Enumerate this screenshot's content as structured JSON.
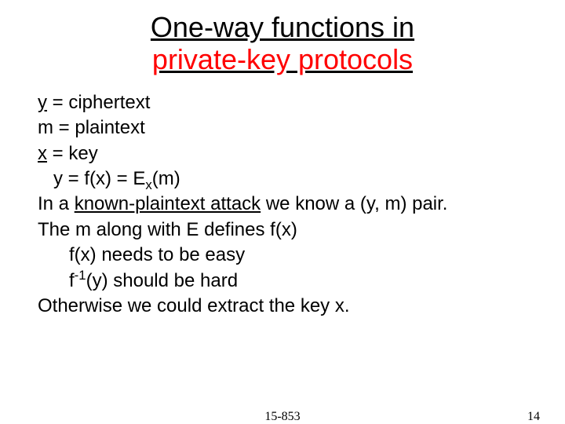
{
  "title": {
    "line1": "One-way functions in",
    "line2": "private-key protocols",
    "line2_color": "#ff0000",
    "fontsize": 36,
    "underline": true
  },
  "body": {
    "fontsize": 24,
    "lines": {
      "l1_var": "y",
      "l1_rest": " = ciphertext",
      "l2": "m = plaintext",
      "l3_var": "x",
      "l3_rest": " = key",
      "l4_pre": "y = f(x) = E",
      "l4_sub": "x",
      "l4_post": "(m)",
      "l5_pre": "In a ",
      "l5_u": "known-plaintext attack",
      "l5_post": " we know a (y, m) pair.",
      "l6": "The m along with E defines f(x)",
      "l7": "f(x) needs to be easy",
      "l8_pre": "f",
      "l8_sup": "-1",
      "l8_post": "(y) should be hard",
      "l9": "Otherwise we could extract the key x."
    }
  },
  "footer": {
    "course": "15-853",
    "page": "14",
    "fontsize": 16
  },
  "colors": {
    "text": "#000000",
    "background": "#ffffff",
    "accent": "#ff0000"
  }
}
